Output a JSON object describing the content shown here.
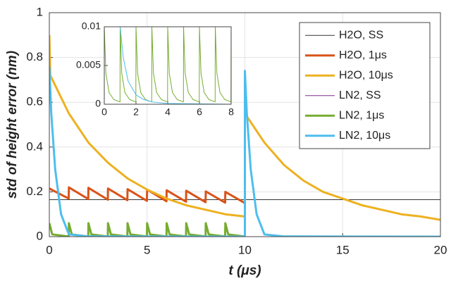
{
  "chart_data": [
    {
      "type": "line",
      "xlabel": "t (μs)",
      "ylabel": "std of height error (nm)",
      "xlim": [
        0,
        20
      ],
      "ylim": [
        0,
        1
      ],
      "xticks": [
        0,
        5,
        10,
        15,
        20
      ],
      "yticks": [
        0,
        0.2,
        0.4,
        0.6,
        0.8,
        1
      ],
      "grid": true,
      "legend": "upper right",
      "series": [
        {
          "name": "H2O, SS",
          "color": "#333333",
          "line_width": 1,
          "x": [
            0,
            20
          ],
          "values": [
            0.165,
            0.165
          ]
        },
        {
          "name": "H2O, 1μs",
          "color": "#d95319",
          "line_width": 3,
          "x": [
            0,
            0.99,
            1,
            1.99,
            2,
            2.99,
            3,
            3.99,
            4,
            4.99,
            5,
            5.99,
            6,
            6.99,
            7,
            7.99,
            8,
            8.99,
            9,
            10
          ],
          "values": [
            0.215,
            0.17,
            0.22,
            0.168,
            0.218,
            0.165,
            0.215,
            0.163,
            0.212,
            0.16,
            0.21,
            0.158,
            0.207,
            0.156,
            0.205,
            0.154,
            0.202,
            0.152,
            0.2,
            0.15
          ]
        },
        {
          "name": "H2O, 10μs",
          "color": "#edb120",
          "line_width": 3,
          "x": [
            0,
            0.05,
            1,
            2,
            3,
            4,
            5,
            6,
            7,
            8,
            9,
            10,
            10,
            11,
            12,
            13,
            14,
            15,
            16,
            17,
            18,
            19,
            20
          ],
          "values": [
            0.9,
            0.72,
            0.55,
            0.42,
            0.33,
            0.26,
            0.21,
            0.17,
            0.14,
            0.12,
            0.1,
            0.09,
            0.55,
            0.42,
            0.32,
            0.25,
            0.2,
            0.17,
            0.14,
            0.12,
            0.1,
            0.09,
            0.075
          ]
        },
        {
          "name": "LN2, SS",
          "color": "#7e2f8e",
          "line_width": 1,
          "x": [
            0,
            20
          ],
          "values": [
            0,
            0
          ]
        },
        {
          "name": "LN2, 1μs",
          "color": "#77ac30",
          "line_width": 3,
          "x": [
            0,
            0.15,
            0.99,
            1,
            1.15,
            1.99,
            2,
            2.15,
            2.99,
            3,
            3.15,
            3.99,
            4,
            4.15,
            4.99,
            5,
            5.15,
            5.99,
            6,
            6.15,
            6.99,
            7,
            7.15,
            7.99,
            8,
            8.15,
            8.99,
            9,
            9.15,
            9.99
          ],
          "values": [
            0.06,
            0.01,
            0.001,
            0.06,
            0.01,
            0.001,
            0.06,
            0.01,
            0.001,
            0.06,
            0.01,
            0.001,
            0.06,
            0.01,
            0.001,
            0.06,
            0.01,
            0.001,
            0.06,
            0.01,
            0.001,
            0.06,
            0.01,
            0.001,
            0.06,
            0.01,
            0.001,
            0.06,
            0.01,
            0.001
          ]
        },
        {
          "name": "LN2, 10μs",
          "color": "#4dbeee",
          "line_width": 3,
          "x": [
            0,
            0.1,
            0.3,
            0.6,
            1,
            2,
            10,
            10,
            10.1,
            10.3,
            10.6,
            11,
            12,
            20
          ],
          "values": [
            0.76,
            0.55,
            0.3,
            0.1,
            0.01,
            0.001,
            0,
            0.74,
            0.55,
            0.3,
            0.1,
            0.01,
            0.001,
            0
          ]
        }
      ]
    },
    {
      "type": "line",
      "xlim": [
        0,
        8
      ],
      "ylim": [
        0,
        0.01
      ],
      "xticks": [
        0,
        2,
        4,
        6,
        8
      ],
      "yticks": [
        0,
        0.005,
        0.01
      ],
      "grid": false,
      "series": [
        {
          "color": "#77ac30",
          "line_width": 1,
          "x": [
            0,
            0.1,
            0.3,
            0.6,
            0.99,
            1,
            1.1,
            1.3,
            1.6,
            1.99,
            2,
            2.1,
            2.3,
            2.6,
            2.99,
            3,
            3.1,
            3.3,
            3.6,
            3.99,
            4,
            4.1,
            4.3,
            4.6,
            4.99,
            5,
            5.1,
            5.3,
            5.6,
            5.99,
            6,
            6.1,
            6.3,
            6.6,
            6.99,
            7,
            7.1,
            7.3,
            7.6,
            7.99,
            8
          ],
          "values": [
            0.01,
            0.004,
            0.0015,
            0.0006,
            0.0003,
            0.01,
            0.004,
            0.0015,
            0.0006,
            0.0003,
            0.01,
            0.004,
            0.0015,
            0.0006,
            0.0003,
            0.01,
            0.004,
            0.0015,
            0.0006,
            0.0003,
            0.01,
            0.004,
            0.0015,
            0.0006,
            0.0003,
            0.01,
            0.004,
            0.0015,
            0.0006,
            0.0003,
            0.01,
            0.004,
            0.0015,
            0.0006,
            0.0003,
            0.01,
            0.004,
            0.0015,
            0.0006,
            0.0003,
            0.01
          ]
        },
        {
          "color": "#4dbeee",
          "line_width": 1,
          "x": [
            1,
            1.2,
            1.5,
            2,
            2.5,
            3,
            4,
            8
          ],
          "values": [
            0.01,
            0.006,
            0.003,
            0.0012,
            0.0006,
            0.0003,
            0.0001,
            0
          ]
        }
      ]
    }
  ]
}
